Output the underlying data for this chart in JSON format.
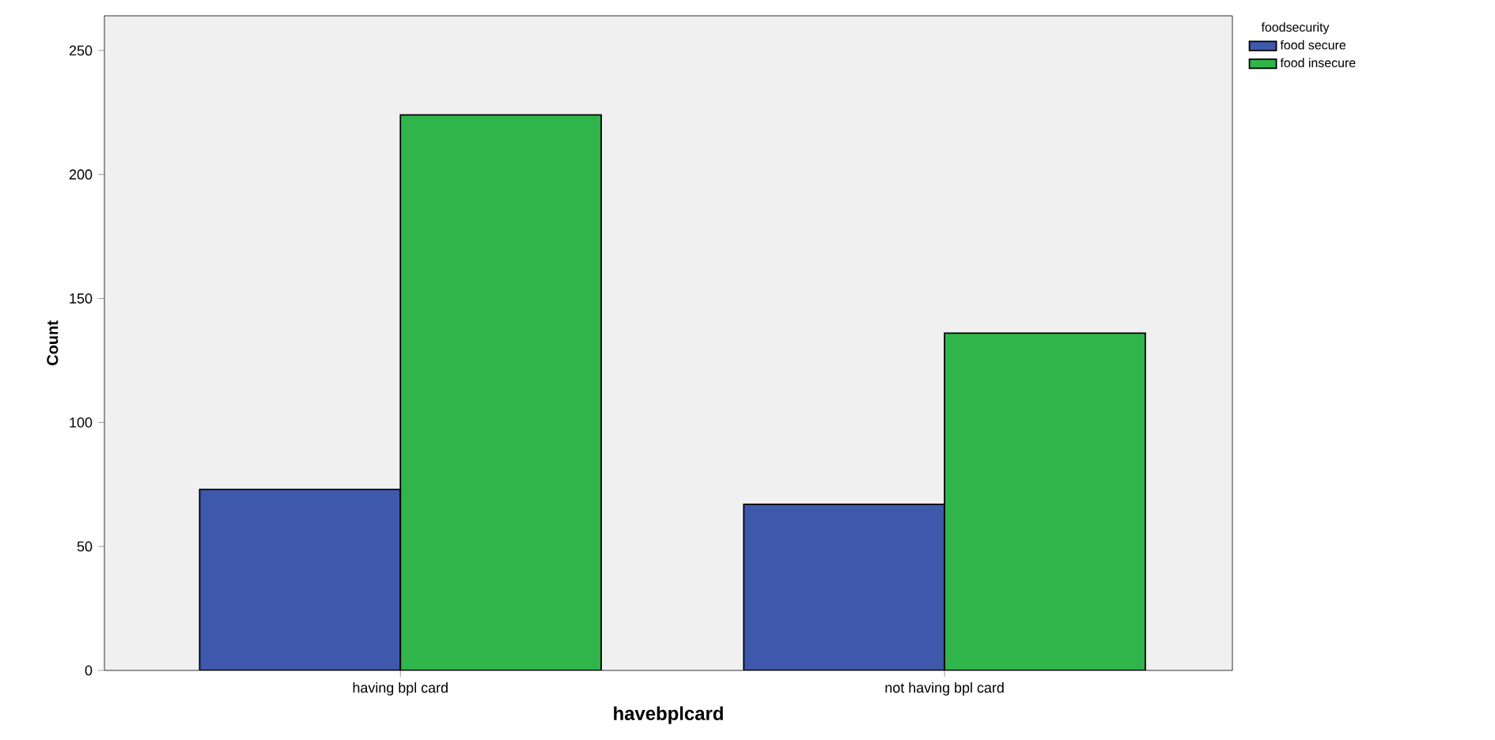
{
  "chart_data": {
    "type": "bar",
    "xlabel": "havebplcard",
    "ylabel": "Count",
    "legend_title": "foodsecurity",
    "categories": [
      "having bpl card",
      "not having bpl card"
    ],
    "series": [
      {
        "name": "food secure",
        "color": "#3e58ac",
        "values": [
          73,
          67
        ]
      },
      {
        "name": "food insecure",
        "color": "#2fb54a",
        "values": [
          224,
          136
        ]
      }
    ],
    "ylim": [
      0,
      264
    ],
    "yticks": [
      0,
      50,
      100,
      150,
      200,
      250
    ],
    "grid": false,
    "legend": "top right"
  }
}
